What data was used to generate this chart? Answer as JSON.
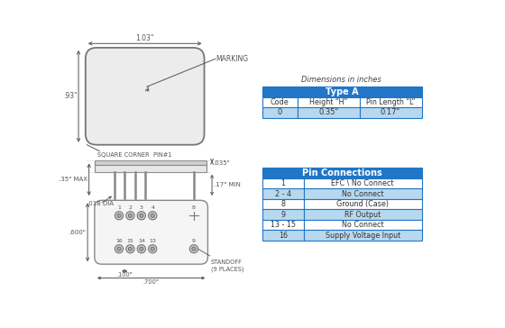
{
  "bg_color": "#ffffff",
  "dim_color": "#555555",
  "table_header_color": "#2176c7",
  "table_header_text": "#ffffff",
  "table_row_light": "#b8d8ef",
  "table_row_white": "#ffffff",
  "table_border": "#2176c7",
  "text_color": "#333333",
  "dim_text_color": "#555555",
  "type_a_header": "Type A",
  "dim_title": "Dimensions in inches",
  "type_a_cols": [
    "Code",
    "Height “H”",
    "Pin Length “L”"
  ],
  "type_a_data": [
    [
      "0",
      "0.35\"",
      "0.17\""
    ]
  ],
  "pin_header": "Pin Connections",
  "pin_data": [
    [
      "1",
      "EFC \\ No Connect"
    ],
    [
      "2 - 4",
      "No Connect"
    ],
    [
      "8",
      "Ground (Case)"
    ],
    [
      "9",
      "RF Output"
    ],
    [
      "13 - 15",
      "No Connect"
    ],
    [
      "16",
      "Supply Voltage Input"
    ]
  ],
  "top_dim_w": "1.03\"",
  "top_dim_h": ".93\"",
  "side_dim_h": ".35\" MAX",
  "side_dim_pin": ".035\"",
  "side_dim_min": ".17\" MIN",
  "side_dim_dia": ".018 DIA",
  "bot_dim_600": ".600\"",
  "bot_dim_100": ".100\"",
  "bot_dim_700": ".700\"",
  "marking_label": "MARKING",
  "corner_label": "SQUARE CORNER  PIN#1",
  "standoff_label": "STANDOFF\n(9 PLACES)"
}
